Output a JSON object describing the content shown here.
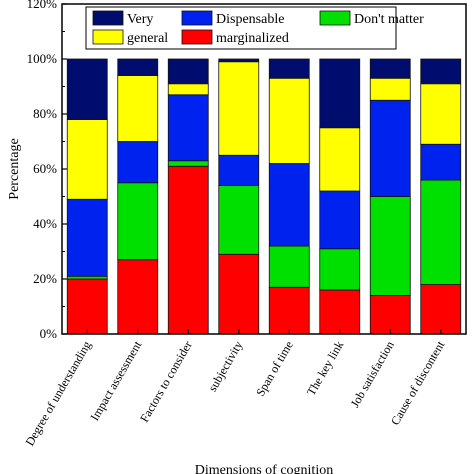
{
  "chart_data": {
    "type": "bar",
    "stacked": true,
    "percent": true,
    "categories": [
      "Degree of understanding",
      "Impact assessment",
      "Factors to consider",
      "subjectivity",
      "Span of time",
      "The key link",
      "Job satisfaction",
      "Cause of discontent"
    ],
    "series": [
      {
        "name": "marginalized",
        "color": "#ff0000",
        "values": [
          20,
          27,
          61,
          29,
          17,
          16,
          14,
          18
        ]
      },
      {
        "name": "Don't matter",
        "color": "#00e000",
        "values": [
          1,
          28,
          2,
          25,
          15,
          15,
          36,
          38
        ]
      },
      {
        "name": "Dispensable",
        "color": "#0022ee",
        "values": [
          28,
          15,
          24,
          11,
          30,
          21,
          35,
          13
        ]
      },
      {
        "name": "general",
        "color": "#ffff00",
        "values": [
          29,
          24,
          4,
          34,
          31,
          23,
          8,
          22
        ]
      },
      {
        "name": "Very",
        "color": "#000c6e",
        "values": [
          22,
          6,
          9,
          1,
          7,
          25,
          7,
          9
        ]
      }
    ],
    "legend_order": [
      "Very",
      "Dispensable",
      "Don't matter",
      "general",
      "marginalized"
    ],
    "legend_placement": "top",
    "title": "",
    "xlabel": "Dimensions of cognition",
    "ylabel": "Percentage",
    "ylim": [
      0,
      120
    ],
    "yticks": [
      "0%",
      "20%",
      "40%",
      "60%",
      "80%",
      "100%",
      "120%"
    ],
    "grid": false
  }
}
